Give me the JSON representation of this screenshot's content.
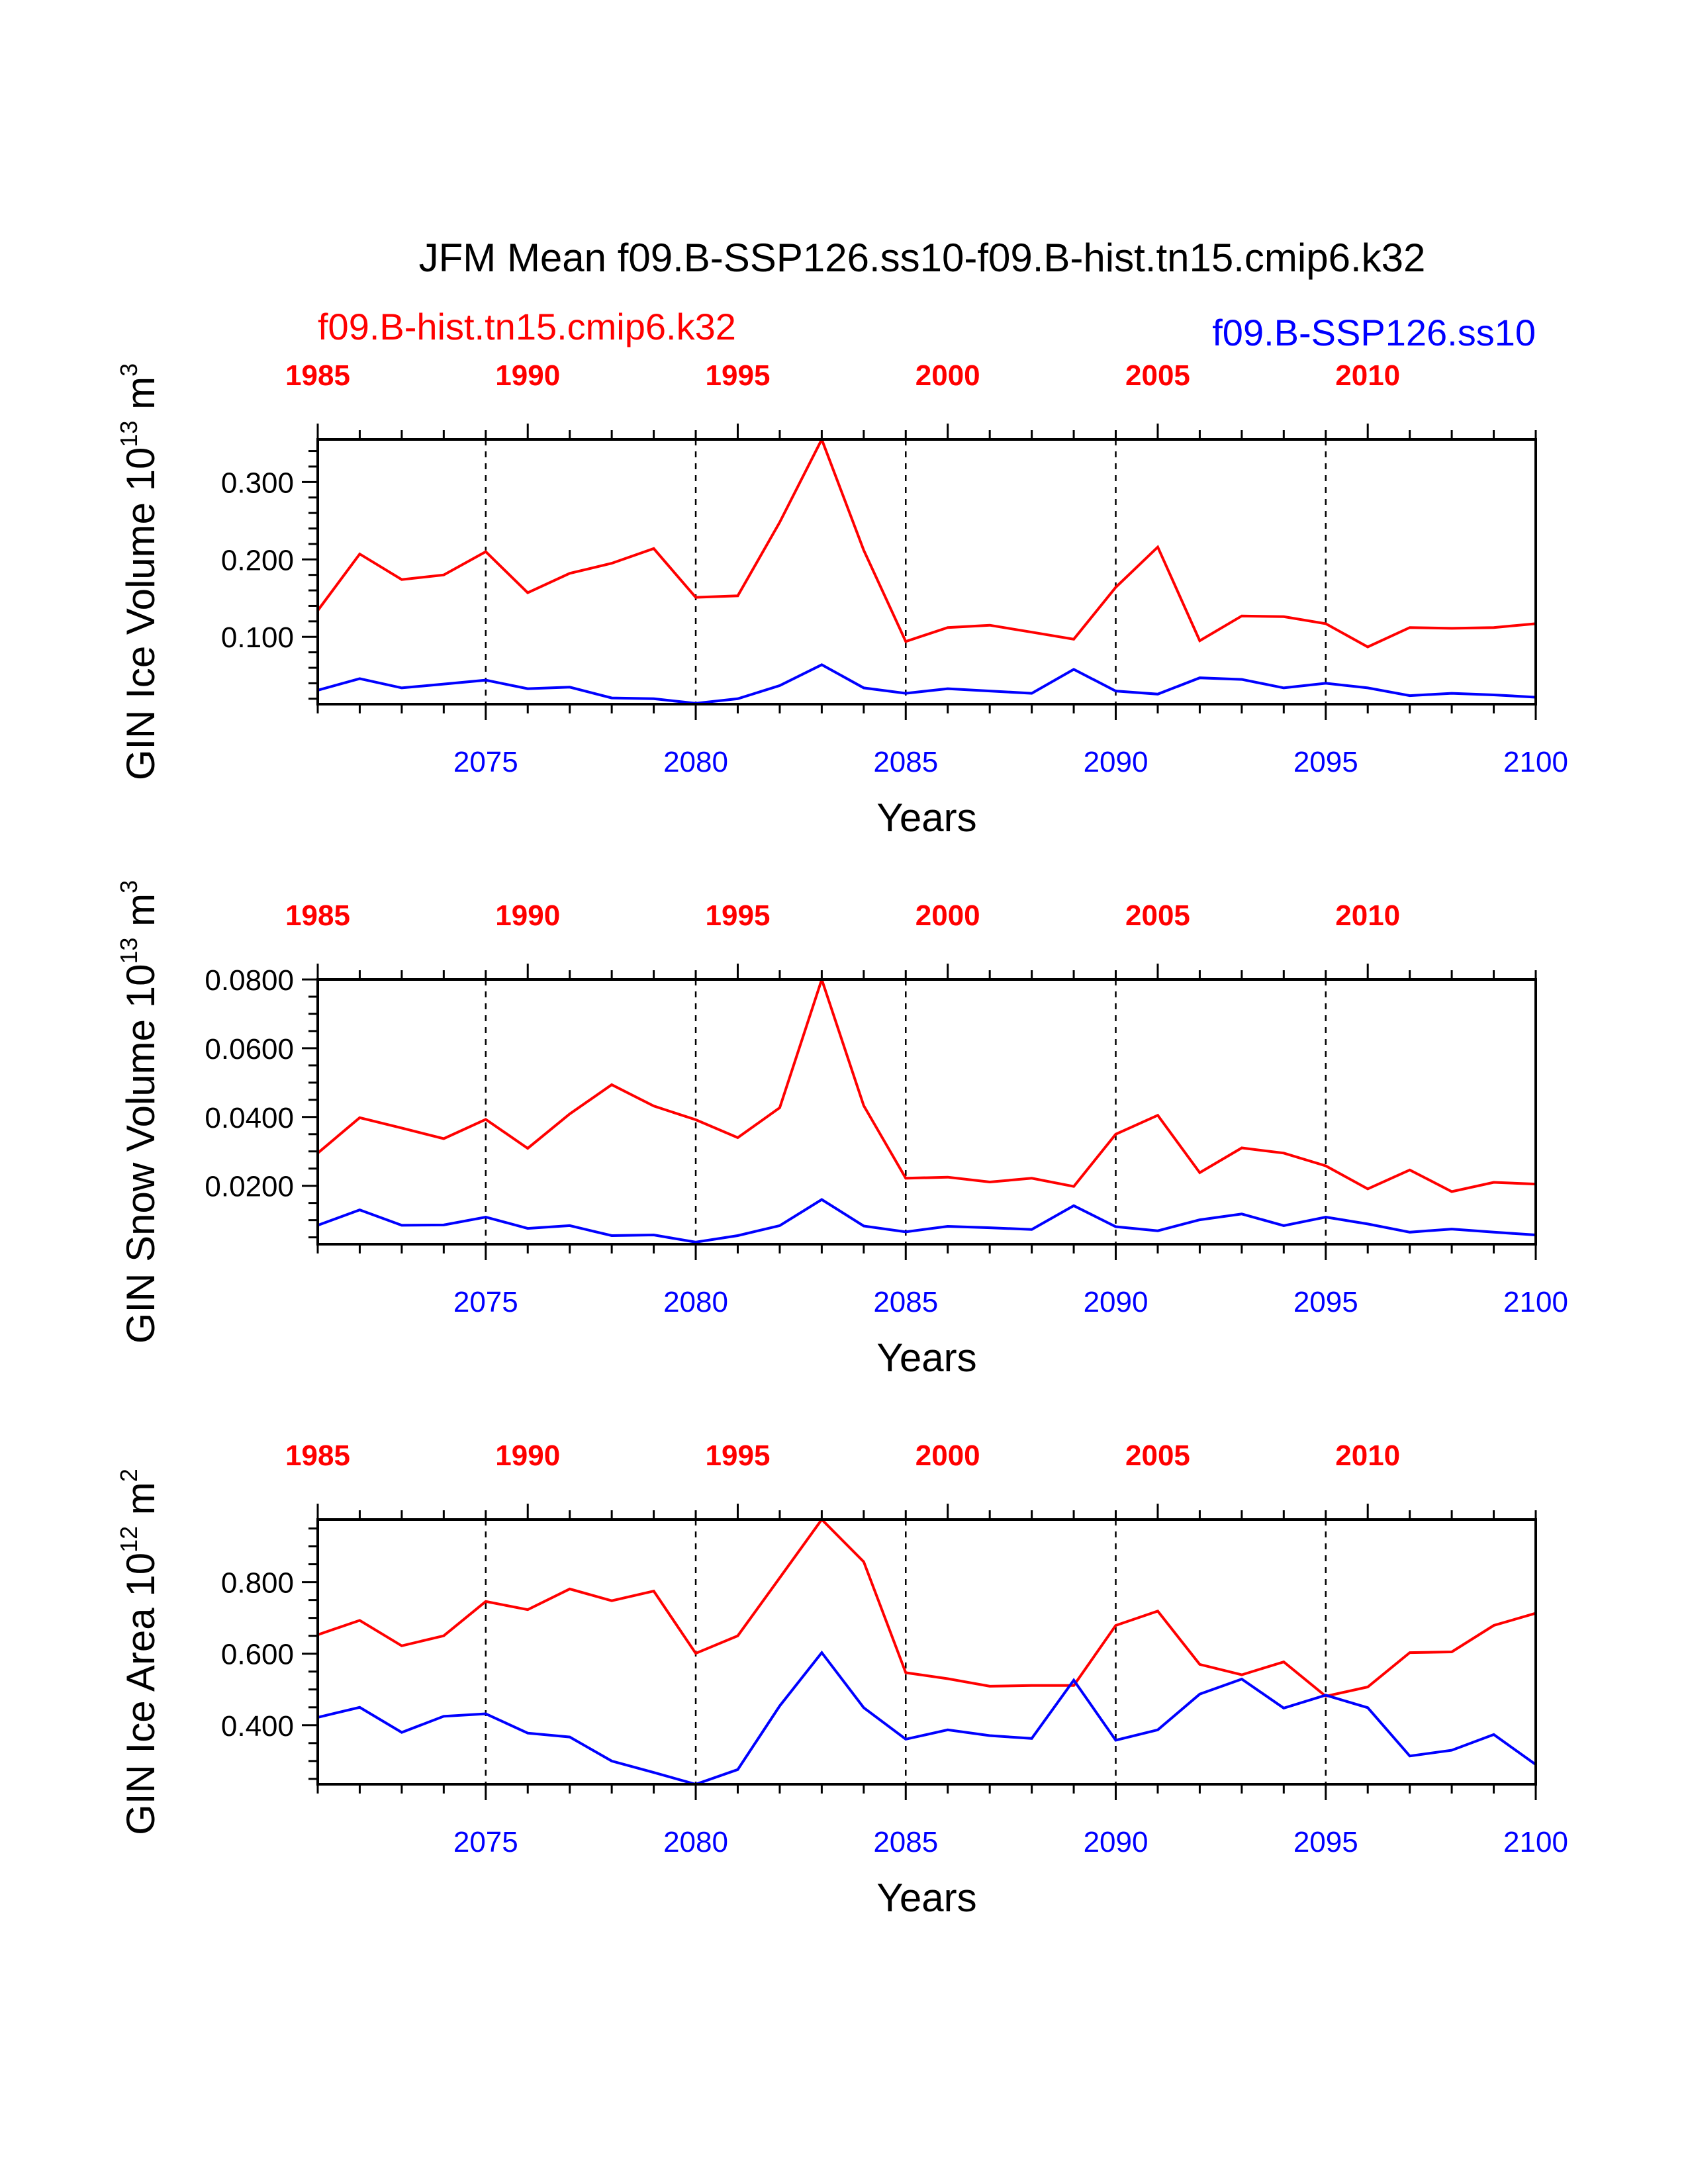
{
  "figure": {
    "title": "JFM Mean f09.B-SSP126.ss10-f09.B-hist.tn15.cmip6.k32"
  },
  "legend": {
    "hist": "f09.B-hist.tn15.cmip6.k32",
    "ssp": "f09.B-SSP126.ss10"
  },
  "colors": {
    "hist": "#ff0000",
    "ssp": "#0000ff",
    "axis": "#000000"
  },
  "chart_data": [
    {
      "type": "line",
      "ylabel": {
        "prefix": "GIN Ice Volume 10",
        "exp": "13",
        "unit": " m",
        "unit_exp": "3"
      },
      "xlabel": "Years",
      "x": [
        2071,
        2072,
        2073,
        2074,
        2075,
        2076,
        2077,
        2078,
        2079,
        2080,
        2081,
        2082,
        2083,
        2084,
        2085,
        2086,
        2087,
        2088,
        2089,
        2090,
        2091,
        2092,
        2093,
        2094,
        2095,
        2096,
        2097,
        2098,
        2099,
        2100
      ],
      "xlim": [
        2071,
        2100
      ],
      "ylim": [
        0.013,
        0.355
      ],
      "yticks": [
        0.1,
        0.2,
        0.3
      ],
      "ytick_labels": [
        "0.100",
        "0.200",
        "0.300"
      ],
      "yminor": [
        0.02,
        0.04,
        0.06,
        0.08,
        0.12,
        0.14,
        0.16,
        0.18,
        0.22,
        0.24,
        0.26,
        0.28,
        0.32,
        0.34
      ],
      "bottom_ticks": [
        2075,
        2080,
        2085,
        2090,
        2095,
        2100
      ],
      "bottom_tick_labels": [
        "2075",
        "2080",
        "2085",
        "2090",
        "2095",
        "2100"
      ],
      "top_ticks": [
        1985,
        1990,
        1995,
        2000,
        2005,
        2010
      ],
      "top_tick_labels": [
        "1985",
        "1990",
        "1995",
        "2000",
        "2005",
        "2010"
      ],
      "series": [
        {
          "name": "f09.B-hist.tn15.cmip6.k32",
          "color": "#ff0000",
          "values": [
            0.134,
            0.207,
            0.174,
            0.18,
            0.21,
            0.157,
            0.182,
            0.195,
            0.214,
            0.151,
            0.153,
            0.248,
            0.355,
            0.212,
            0.094,
            0.112,
            0.115,
            0.106,
            0.097,
            0.164,
            0.216,
            0.095,
            0.127,
            0.126,
            0.117,
            0.087,
            0.112,
            0.111,
            0.112,
            0.117
          ]
        },
        {
          "name": "f09.B-SSP126.ss10",
          "color": "#0000ff",
          "values": [
            0.031,
            0.046,
            0.034,
            0.039,
            0.044,
            0.033,
            0.035,
            0.021,
            0.02,
            0.014,
            0.02,
            0.037,
            0.064,
            0.034,
            0.027,
            0.033,
            0.03,
            0.027,
            0.058,
            0.03,
            0.026,
            0.047,
            0.045,
            0.034,
            0.04,
            0.034,
            0.024,
            0.027,
            0.025,
            0.022
          ]
        }
      ]
    },
    {
      "type": "line",
      "ylabel": {
        "prefix": "GIN Snow Volume 10",
        "exp": "13",
        "unit": " m",
        "unit_exp": "3"
      },
      "xlabel": "Years",
      "x": [
        2071,
        2072,
        2073,
        2074,
        2075,
        2076,
        2077,
        2078,
        2079,
        2080,
        2081,
        2082,
        2083,
        2084,
        2085,
        2086,
        2087,
        2088,
        2089,
        2090,
        2091,
        2092,
        2093,
        2094,
        2095,
        2096,
        2097,
        2098,
        2099,
        2100
      ],
      "xlim": [
        2071,
        2100
      ],
      "ylim": [
        0.003,
        0.08
      ],
      "yticks": [
        0.02,
        0.04,
        0.06,
        0.08
      ],
      "ytick_labels": [
        "0.0200",
        "0.0400",
        "0.0600",
        "0.0800"
      ],
      "yminor": [
        0.005,
        0.01,
        0.015,
        0.025,
        0.03,
        0.035,
        0.045,
        0.05,
        0.055,
        0.065,
        0.07,
        0.075
      ],
      "bottom_ticks": [
        2075,
        2080,
        2085,
        2090,
        2095,
        2100
      ],
      "bottom_tick_labels": [
        "2075",
        "2080",
        "2085",
        "2090",
        "2095",
        "2100"
      ],
      "top_ticks": [
        1985,
        1990,
        1995,
        2000,
        2005,
        2010
      ],
      "top_tick_labels": [
        "1985",
        "1990",
        "1995",
        "2000",
        "2005",
        "2010"
      ],
      "series": [
        {
          "name": "f09.B-hist.tn15.cmip6.k32",
          "color": "#ff0000",
          "values": [
            0.0295,
            0.0398,
            0.0368,
            0.0337,
            0.0393,
            0.0309,
            0.0409,
            0.0494,
            0.0432,
            0.0392,
            0.034,
            0.0427,
            0.08,
            0.0433,
            0.0222,
            0.0225,
            0.0211,
            0.0222,
            0.0198,
            0.035,
            0.0405,
            0.0238,
            0.031,
            0.0295,
            0.0258,
            0.0191,
            0.0246,
            0.0183,
            0.021,
            0.0205
          ]
        },
        {
          "name": "f09.B-SSP126.ss10",
          "color": "#0000ff",
          "values": [
            0.0085,
            0.013,
            0.0085,
            0.0086,
            0.0109,
            0.0076,
            0.0084,
            0.0055,
            0.0057,
            0.0036,
            0.0055,
            0.0084,
            0.016,
            0.0083,
            0.0066,
            0.0082,
            0.0078,
            0.0073,
            0.0142,
            0.0081,
            0.0069,
            0.0101,
            0.0118,
            0.0084,
            0.0109,
            0.0089,
            0.0065,
            0.0074,
            0.0065,
            0.0057
          ]
        }
      ]
    },
    {
      "type": "line",
      "ylabel": {
        "prefix": "GIN Ice Area 10",
        "exp": "12",
        "unit": " m",
        "unit_exp": "2"
      },
      "xlabel": "Years",
      "x": [
        2071,
        2072,
        2073,
        2074,
        2075,
        2076,
        2077,
        2078,
        2079,
        2080,
        2081,
        2082,
        2083,
        2084,
        2085,
        2086,
        2087,
        2088,
        2089,
        2090,
        2091,
        2092,
        2093,
        2094,
        2095,
        2096,
        2097,
        2098,
        2099,
        2100
      ],
      "xlim": [
        2071,
        2100
      ],
      "ylim": [
        0.235,
        0.975
      ],
      "yticks": [
        0.4,
        0.6,
        0.8
      ],
      "ytick_labels": [
        "0.400",
        "0.600",
        "0.800"
      ],
      "yminor": [
        0.25,
        0.3,
        0.35,
        0.45,
        0.5,
        0.55,
        0.65,
        0.7,
        0.75,
        0.85,
        0.9,
        0.95
      ],
      "bottom_ticks": [
        2075,
        2080,
        2085,
        2090,
        2095,
        2100
      ],
      "bottom_tick_labels": [
        "2075",
        "2080",
        "2085",
        "2090",
        "2095",
        "2100"
      ],
      "top_ticks": [
        1985,
        1990,
        1995,
        2000,
        2005,
        2010
      ],
      "top_tick_labels": [
        "1985",
        "1990",
        "1995",
        "2000",
        "2005",
        "2010"
      ],
      "series": [
        {
          "name": "f09.B-hist.tn15.cmip6.k32",
          "color": "#ff0000",
          "values": [
            0.653,
            0.693,
            0.622,
            0.65,
            0.746,
            0.723,
            0.781,
            0.748,
            0.775,
            0.601,
            0.65,
            0.812,
            0.975,
            0.857,
            0.547,
            0.53,
            0.509,
            0.511,
            0.511,
            0.679,
            0.719,
            0.57,
            0.541,
            0.577,
            0.481,
            0.507,
            0.603,
            0.605,
            0.679,
            0.713
          ]
        },
        {
          "name": "f09.B-SSP126.ss10",
          "color": "#0000ff",
          "values": [
            0.422,
            0.45,
            0.38,
            0.425,
            0.432,
            0.378,
            0.367,
            0.3,
            0.268,
            0.235,
            0.276,
            0.454,
            0.603,
            0.449,
            0.361,
            0.387,
            0.371,
            0.363,
            0.526,
            0.358,
            0.387,
            0.487,
            0.529,
            0.448,
            0.484,
            0.449,
            0.314,
            0.33,
            0.374,
            0.29
          ]
        }
      ]
    }
  ]
}
